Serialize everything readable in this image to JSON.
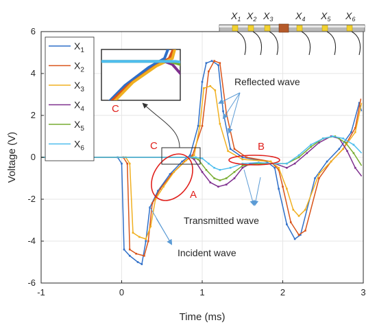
{
  "chart_data": {
    "type": "line",
    "xlabel": "Time (ms)",
    "ylabel": "Voltage (V)",
    "xlim": [
      -1,
      3
    ],
    "ylim": [
      -6,
      6
    ],
    "xticks": [
      "-1",
      "0",
      "1",
      "2",
      "3"
    ],
    "yticks": [
      "-6",
      "-4",
      "-2",
      "0",
      "2",
      "4",
      "6"
    ],
    "grid": true,
    "legend_position": "top-left",
    "series": [
      {
        "name": "X",
        "sub": "1",
        "color": "#2f6fc8",
        "points": [
          [
            -1,
            0
          ],
          [
            -0.05,
            0
          ],
          [
            0,
            -0.3
          ],
          [
            0.03,
            -4.4
          ],
          [
            0.1,
            -4.7
          ],
          [
            0.2,
            -5.0
          ],
          [
            0.25,
            -5.1
          ],
          [
            0.3,
            -4.0
          ],
          [
            0.35,
            -2.4
          ],
          [
            0.45,
            -1.6
          ],
          [
            0.6,
            -0.8
          ],
          [
            0.75,
            -0.2
          ],
          [
            0.85,
            0.1
          ],
          [
            0.95,
            1.5
          ],
          [
            1.0,
            3.6
          ],
          [
            1.05,
            4.5
          ],
          [
            1.12,
            4.6
          ],
          [
            1.2,
            4.4
          ],
          [
            1.26,
            2.2
          ],
          [
            1.35,
            0.4
          ],
          [
            1.5,
            0.0
          ],
          [
            1.8,
            -0.2
          ],
          [
            1.9,
            -0.5
          ],
          [
            1.95,
            -1.5
          ],
          [
            2.05,
            -3.2
          ],
          [
            2.15,
            -3.9
          ],
          [
            2.22,
            -3.7
          ],
          [
            2.4,
            -1.0
          ],
          [
            2.55,
            -0.2
          ],
          [
            2.7,
            0.4
          ],
          [
            2.85,
            1.2
          ],
          [
            2.95,
            2.6
          ],
          [
            2.98,
            2.2
          ]
        ]
      },
      {
        "name": "X",
        "sub": "2",
        "color": "#d95319",
        "points": [
          [
            -1,
            0
          ],
          [
            0.02,
            0
          ],
          [
            0.07,
            -0.3
          ],
          [
            0.1,
            -4.4
          ],
          [
            0.18,
            -4.6
          ],
          [
            0.28,
            -4.7
          ],
          [
            0.33,
            -4.0
          ],
          [
            0.38,
            -2.2
          ],
          [
            0.48,
            -1.5
          ],
          [
            0.62,
            -0.8
          ],
          [
            0.78,
            -0.2
          ],
          [
            0.88,
            0.1
          ],
          [
            1.0,
            1.5
          ],
          [
            1.08,
            4.1
          ],
          [
            1.15,
            4.6
          ],
          [
            1.22,
            4.5
          ],
          [
            1.3,
            2.1
          ],
          [
            1.4,
            0.4
          ],
          [
            1.55,
            0.0
          ],
          [
            1.85,
            -0.2
          ],
          [
            1.95,
            -0.6
          ],
          [
            2.0,
            -1.4
          ],
          [
            2.1,
            -3.1
          ],
          [
            2.2,
            -3.7
          ],
          [
            2.28,
            -3.5
          ],
          [
            2.45,
            -1.0
          ],
          [
            2.6,
            -0.2
          ],
          [
            2.75,
            0.4
          ],
          [
            2.9,
            1.4
          ],
          [
            2.97,
            2.8
          ]
        ]
      },
      {
        "name": "X",
        "sub": "3",
        "color": "#f0b020",
        "points": [
          [
            -1,
            0
          ],
          [
            0.05,
            0
          ],
          [
            0.1,
            -0.3
          ],
          [
            0.14,
            -3.6
          ],
          [
            0.22,
            -3.8
          ],
          [
            0.3,
            -3.9
          ],
          [
            0.36,
            -3.3
          ],
          [
            0.42,
            -2.0
          ],
          [
            0.52,
            -1.4
          ],
          [
            0.65,
            -0.7
          ],
          [
            0.8,
            -0.15
          ],
          [
            0.9,
            0.1
          ],
          [
            0.97,
            1.5
          ],
          [
            1.02,
            3.3
          ],
          [
            1.1,
            3.4
          ],
          [
            1.16,
            3.2
          ],
          [
            1.22,
            1.6
          ],
          [
            1.32,
            0.3
          ],
          [
            1.5,
            -0.1
          ],
          [
            1.85,
            -0.2
          ],
          [
            1.95,
            -0.5
          ],
          [
            2.05,
            -1.5
          ],
          [
            2.13,
            -2.5
          ],
          [
            2.2,
            -2.8
          ],
          [
            2.28,
            -2.5
          ],
          [
            2.45,
            -0.8
          ],
          [
            2.6,
            -0.2
          ],
          [
            2.75,
            0.4
          ],
          [
            2.9,
            1.2
          ],
          [
            2.98,
            2.6
          ]
        ]
      },
      {
        "name": "X",
        "sub": "4",
        "color": "#7e2f8e",
        "points": [
          [
            -1,
            0
          ],
          [
            0.85,
            0
          ],
          [
            0.9,
            -0.1
          ],
          [
            1.0,
            -0.7
          ],
          [
            1.1,
            -1.2
          ],
          [
            1.2,
            -1.4
          ],
          [
            1.3,
            -1.3
          ],
          [
            1.4,
            -1.0
          ],
          [
            1.5,
            -0.5
          ],
          [
            1.6,
            -0.3
          ],
          [
            1.8,
            -0.3
          ],
          [
            1.9,
            -0.3
          ],
          [
            2.05,
            -0.5
          ],
          [
            2.15,
            -0.3
          ],
          [
            2.3,
            0.2
          ],
          [
            2.45,
            0.7
          ],
          [
            2.6,
            1.0
          ],
          [
            2.7,
            0.9
          ],
          [
            2.8,
            0.3
          ],
          [
            2.9,
            -0.5
          ],
          [
            2.98,
            -0.9
          ]
        ]
      },
      {
        "name": "X",
        "sub": "5",
        "color": "#77ac30",
        "points": [
          [
            -1,
            0
          ],
          [
            0.88,
            0
          ],
          [
            0.95,
            -0.1
          ],
          [
            1.05,
            -0.6
          ],
          [
            1.15,
            -1.0
          ],
          [
            1.22,
            -1.1
          ],
          [
            1.3,
            -1.0
          ],
          [
            1.4,
            -0.7
          ],
          [
            1.5,
            -0.4
          ],
          [
            1.7,
            -0.3
          ],
          [
            1.9,
            -0.3
          ],
          [
            2.05,
            -0.3
          ],
          [
            2.2,
            0.0
          ],
          [
            2.35,
            0.5
          ],
          [
            2.5,
            0.9
          ],
          [
            2.65,
            1.0
          ],
          [
            2.78,
            0.7
          ],
          [
            2.88,
            0.2
          ],
          [
            2.98,
            -0.4
          ]
        ]
      },
      {
        "name": "X",
        "sub": "6",
        "color": "#4dbeee",
        "points": [
          [
            -1,
            0
          ],
          [
            0.92,
            0
          ],
          [
            1.0,
            -0.05
          ],
          [
            1.08,
            -0.3
          ],
          [
            1.15,
            -0.5
          ],
          [
            1.22,
            -0.6
          ],
          [
            1.35,
            -0.5
          ],
          [
            1.5,
            -0.3
          ],
          [
            1.7,
            -0.25
          ],
          [
            1.9,
            -0.3
          ],
          [
            2.05,
            -0.3
          ],
          [
            2.2,
            0.1
          ],
          [
            2.35,
            0.6
          ],
          [
            2.5,
            0.9
          ],
          [
            2.62,
            1.0
          ],
          [
            2.75,
            0.9
          ],
          [
            2.88,
            0.6
          ],
          [
            2.98,
            0.2
          ]
        ]
      }
    ],
    "annotations": {
      "reflected": "Reflected wave",
      "transmitted": "Transmitted wave",
      "incident": "Incident wave",
      "label_a": "A",
      "label_b": "B",
      "label_c_main": "C",
      "label_c_inset": "C"
    },
    "sensor_labels": [
      {
        "name": "X",
        "sub": "1"
      },
      {
        "name": "X",
        "sub": "2"
      },
      {
        "name": "X",
        "sub": "3"
      },
      {
        "name": "X",
        "sub": "4"
      },
      {
        "name": "X",
        "sub": "5"
      },
      {
        "name": "X",
        "sub": "6"
      }
    ],
    "colors": {
      "highlight": "#e0201c",
      "arrow": "#5b9bd5",
      "axis": "#262626",
      "grid": "#e6e6e6"
    }
  }
}
